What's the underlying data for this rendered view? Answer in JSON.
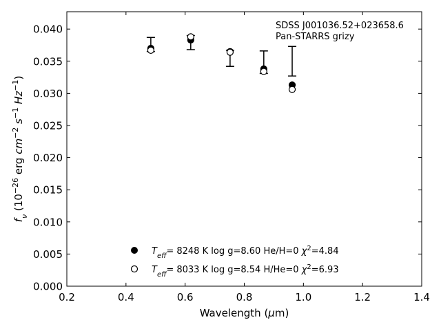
{
  "chart_data": {
    "type": "scatter",
    "annotation": [
      "SDSS J001036.52+023658.6",
      "Pan-STARRS grizy"
    ],
    "xlabel": "Wavelength (μm)",
    "ylabel": "f_ν (10⁻²⁶ erg cm⁻² s⁻¹ Hz⁻¹)",
    "xlim": [
      0.2,
      1.4
    ],
    "ylim": [
      0.0,
      0.0427
    ],
    "xticks": [
      0.2,
      0.4,
      0.6,
      0.8,
      1.0,
      1.2,
      1.4
    ],
    "xtick_labels": [
      "0.2",
      "0.4",
      "0.6",
      "0.8",
      "1.0",
      "1.2",
      "1.4"
    ],
    "yticks": [
      0.0,
      0.005,
      0.01,
      0.015,
      0.02,
      0.025,
      0.03,
      0.035,
      0.04
    ],
    "ytick_labels": [
      "0.000",
      "0.005",
      "0.010",
      "0.015",
      "0.020",
      "0.025",
      "0.030",
      "0.035",
      "0.040"
    ],
    "grid": false,
    "legend_position": "lower-center",
    "observed": {
      "x": [
        0.484,
        0.619,
        0.752,
        0.866,
        0.962
      ],
      "y_low": [
        0.0365,
        0.0368,
        0.0342,
        0.0331,
        0.0327
      ],
      "y_high": [
        0.0387,
        0.039,
        0.0367,
        0.0366,
        0.0373
      ]
    },
    "series": [
      {
        "marker": "filled",
        "legend": "T_eff=  8248 K  log g=8.60  He/H=0  χ²=4.84",
        "x": [
          0.484,
          0.619,
          0.752,
          0.866,
          0.962
        ],
        "y": [
          0.037,
          0.0383,
          0.0365,
          0.0338,
          0.0313
        ]
      },
      {
        "marker": "open",
        "legend": "T_eff=  8033 K  log g=8.54  H/He=0  χ²=6.93",
        "x": [
          0.484,
          0.619,
          0.752,
          0.866,
          0.962
        ],
        "y": [
          0.0367,
          0.0388,
          0.0364,
          0.0334,
          0.0306
        ]
      }
    ],
    "legend_rows": [
      {
        "teff_value": "8248 K",
        "logg": "log g=8.60",
        "comp": "He/H=0",
        "chi_value": "=4.84"
      },
      {
        "teff_value": "8033 K",
        "logg": "log g=8.54",
        "comp": "H/He=0",
        "chi_value": "=6.93"
      }
    ]
  }
}
